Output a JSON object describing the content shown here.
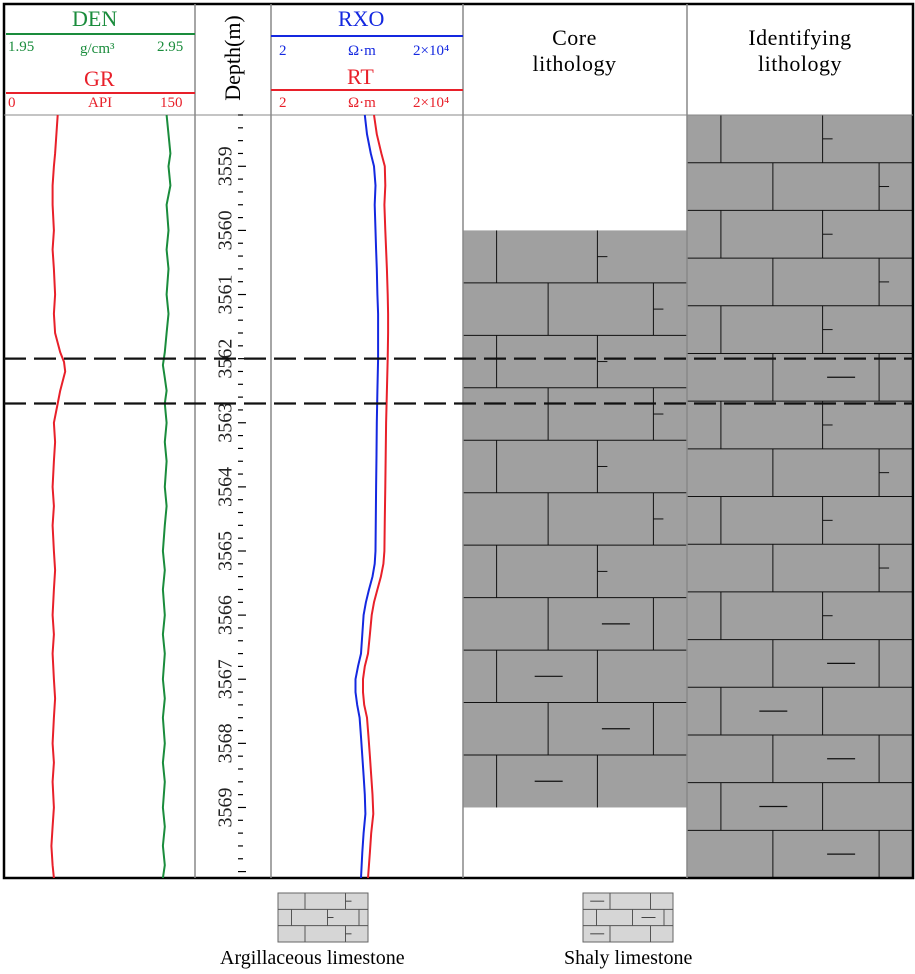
{
  "header": {
    "den": {
      "title": "DEN",
      "min": "1.95",
      "unit": "g/cm³",
      "max": "2.95",
      "color": "#1a8c3c"
    },
    "gr": {
      "title": "GR",
      "min": "0",
      "unit": "API",
      "max": "150",
      "color": "#e8202a"
    },
    "depth": {
      "title": "Depth(m)"
    },
    "rxo": {
      "title": "RXO",
      "min": "2",
      "unit": "Ω·m",
      "max": "2×10⁴",
      "color": "#1428e0"
    },
    "rt": {
      "title": "RT",
      "min": "2",
      "unit": "Ω·m",
      "max": "2×10⁴",
      "color": "#e8202a"
    },
    "core": {
      "title_line1": "Core",
      "title_line2": "lithology"
    },
    "ident": {
      "title_line1": "Identifying",
      "title_line2": "lithology"
    }
  },
  "legend": {
    "argillaceous": {
      "label": "Argillaceous limestone"
    },
    "shaly": {
      "label": "Shaly limestone"
    }
  },
  "chart_data": {
    "type": "line",
    "depth_range": [
      3558.2,
      3570.1
    ],
    "depth_ticks": [
      "3559",
      "3560",
      "3561",
      "3562",
      "3563",
      "3564",
      "3565",
      "3566",
      "3567",
      "3568",
      "3569"
    ],
    "marker_depths": [
      3562.0,
      3562.7
    ],
    "series": [
      {
        "name": "GR",
        "xlim": [
          0,
          150
        ],
        "scale": "linear",
        "color": "#e8202a",
        "points": [
          [
            3558.2,
            41
          ],
          [
            3558.5,
            40
          ],
          [
            3558.8,
            39
          ],
          [
            3559.0,
            38
          ],
          [
            3559.3,
            37
          ],
          [
            3559.6,
            37
          ],
          [
            3560.0,
            38
          ],
          [
            3560.3,
            37
          ],
          [
            3560.6,
            38
          ],
          [
            3561.0,
            39
          ],
          [
            3561.3,
            38
          ],
          [
            3561.6,
            39
          ],
          [
            3561.9,
            43
          ],
          [
            3562.05,
            46
          ],
          [
            3562.2,
            47
          ],
          [
            3562.35,
            45
          ],
          [
            3562.5,
            43
          ],
          [
            3562.7,
            41
          ],
          [
            3563.0,
            38
          ],
          [
            3563.3,
            39
          ],
          [
            3563.6,
            38
          ],
          [
            3564.0,
            37
          ],
          [
            3564.3,
            38
          ],
          [
            3564.6,
            37
          ],
          [
            3565.0,
            38
          ],
          [
            3565.3,
            39
          ],
          [
            3565.6,
            38
          ],
          [
            3566.0,
            37
          ],
          [
            3566.3,
            38
          ],
          [
            3566.6,
            37
          ],
          [
            3567.0,
            38
          ],
          [
            3567.3,
            39
          ],
          [
            3567.6,
            38
          ],
          [
            3568.0,
            37
          ],
          [
            3568.3,
            38
          ],
          [
            3568.6,
            37
          ],
          [
            3569.0,
            38
          ],
          [
            3569.3,
            37
          ],
          [
            3569.6,
            36
          ],
          [
            3569.9,
            37
          ],
          [
            3570.1,
            38
          ]
        ]
      },
      {
        "name": "DEN",
        "xlim": [
          1.95,
          2.95
        ],
        "scale": "linear",
        "color": "#1a8c3c",
        "points": [
          [
            3558.2,
            2.8
          ],
          [
            3558.5,
            2.81
          ],
          [
            3558.8,
            2.82
          ],
          [
            3559.0,
            2.81
          ],
          [
            3559.3,
            2.82
          ],
          [
            3559.6,
            2.8
          ],
          [
            3560.0,
            2.81
          ],
          [
            3560.3,
            2.8
          ],
          [
            3560.6,
            2.81
          ],
          [
            3561.0,
            2.8
          ],
          [
            3561.3,
            2.81
          ],
          [
            3561.6,
            2.8
          ],
          [
            3561.9,
            2.79
          ],
          [
            3562.1,
            2.78
          ],
          [
            3562.3,
            2.79
          ],
          [
            3562.5,
            2.8
          ],
          [
            3562.7,
            2.79
          ],
          [
            3563.0,
            2.8
          ],
          [
            3563.3,
            2.79
          ],
          [
            3563.6,
            2.8
          ],
          [
            3564.0,
            2.79
          ],
          [
            3564.3,
            2.8
          ],
          [
            3564.6,
            2.79
          ],
          [
            3565.0,
            2.78
          ],
          [
            3565.3,
            2.79
          ],
          [
            3565.6,
            2.78
          ],
          [
            3566.0,
            2.79
          ],
          [
            3566.3,
            2.78
          ],
          [
            3566.6,
            2.79
          ],
          [
            3567.0,
            2.78
          ],
          [
            3567.3,
            2.79
          ],
          [
            3567.6,
            2.78
          ],
          [
            3568.0,
            2.79
          ],
          [
            3568.3,
            2.78
          ],
          [
            3568.6,
            2.79
          ],
          [
            3569.0,
            2.78
          ],
          [
            3569.3,
            2.79
          ],
          [
            3569.6,
            2.78
          ],
          [
            3569.9,
            2.79
          ],
          [
            3570.1,
            2.78
          ]
        ]
      },
      {
        "name": "RXO",
        "xlim": [
          2,
          20000
        ],
        "scale": "log",
        "color": "#1428e0",
        "points": [
          [
            3558.2,
            180
          ],
          [
            3558.5,
            200
          ],
          [
            3558.8,
            240
          ],
          [
            3559.0,
            280
          ],
          [
            3559.3,
            300
          ],
          [
            3559.6,
            290
          ],
          [
            3560.0,
            300
          ],
          [
            3560.3,
            310
          ],
          [
            3560.6,
            320
          ],
          [
            3561.0,
            330
          ],
          [
            3561.3,
            340
          ],
          [
            3561.6,
            340
          ],
          [
            3562.0,
            340
          ],
          [
            3562.5,
            330
          ],
          [
            3563.0,
            320
          ],
          [
            3563.5,
            315
          ],
          [
            3564.0,
            310
          ],
          [
            3564.5,
            305
          ],
          [
            3565.0,
            300
          ],
          [
            3565.2,
            290
          ],
          [
            3565.4,
            260
          ],
          [
            3565.6,
            220
          ],
          [
            3565.8,
            190
          ],
          [
            3566.0,
            170
          ],
          [
            3566.3,
            160
          ],
          [
            3566.6,
            150
          ],
          [
            3566.8,
            130
          ],
          [
            3567.0,
            115
          ],
          [
            3567.2,
            115
          ],
          [
            3567.4,
            125
          ],
          [
            3567.6,
            140
          ],
          [
            3567.9,
            150
          ],
          [
            3568.2,
            160
          ],
          [
            3568.5,
            170
          ],
          [
            3568.8,
            180
          ],
          [
            3569.1,
            185
          ],
          [
            3569.4,
            170
          ],
          [
            3569.7,
            160
          ],
          [
            3570.1,
            150
          ]
        ]
      },
      {
        "name": "RT",
        "xlim": [
          2,
          20000
        ],
        "scale": "log",
        "color": "#e8202a",
        "points": [
          [
            3558.2,
            280
          ],
          [
            3558.5,
            320
          ],
          [
            3558.8,
            400
          ],
          [
            3559.0,
            470
          ],
          [
            3559.3,
            480
          ],
          [
            3559.6,
            460
          ],
          [
            3560.0,
            480
          ],
          [
            3560.3,
            500
          ],
          [
            3560.6,
            520
          ],
          [
            3561.0,
            540
          ],
          [
            3561.3,
            550
          ],
          [
            3561.6,
            550
          ],
          [
            3562.0,
            540
          ],
          [
            3562.5,
            520
          ],
          [
            3563.0,
            500
          ],
          [
            3563.5,
            490
          ],
          [
            3564.0,
            480
          ],
          [
            3564.5,
            470
          ],
          [
            3565.0,
            460
          ],
          [
            3565.2,
            440
          ],
          [
            3565.4,
            390
          ],
          [
            3565.6,
            330
          ],
          [
            3565.8,
            280
          ],
          [
            3566.0,
            250
          ],
          [
            3566.3,
            230
          ],
          [
            3566.6,
            210
          ],
          [
            3566.8,
            180
          ],
          [
            3567.0,
            165
          ],
          [
            3567.2,
            165
          ],
          [
            3567.4,
            175
          ],
          [
            3567.6,
            200
          ],
          [
            3567.9,
            215
          ],
          [
            3568.2,
            230
          ],
          [
            3568.5,
            245
          ],
          [
            3568.8,
            260
          ],
          [
            3569.1,
            270
          ],
          [
            3569.4,
            245
          ],
          [
            3569.7,
            230
          ],
          [
            3570.1,
            210
          ]
        ]
      }
    ],
    "core_lithology": {
      "top_depth": 3560.0,
      "bottom_depth": 3569.0,
      "rows": [
        {
          "type": "argillaceous"
        },
        {
          "type": "argillaceous"
        },
        {
          "type": "argillaceous"
        },
        {
          "type": "argillaceous"
        },
        {
          "type": "argillaceous"
        },
        {
          "type": "argillaceous"
        },
        {
          "type": "argillaceous"
        },
        {
          "type": "shaly"
        },
        {
          "type": "shaly"
        },
        {
          "type": "shaly"
        },
        {
          "type": "shaly"
        }
      ]
    },
    "identified_lithology": {
      "top_depth": 3558.2,
      "bottom_depth": 3570.1,
      "rows": [
        {
          "type": "argillaceous"
        },
        {
          "type": "argillaceous"
        },
        {
          "type": "argillaceous"
        },
        {
          "type": "argillaceous"
        },
        {
          "type": "argillaceous"
        },
        {
          "type": "shaly"
        },
        {
          "type": "argillaceous"
        },
        {
          "type": "argillaceous"
        },
        {
          "type": "argillaceous"
        },
        {
          "type": "argillaceous"
        },
        {
          "type": "argillaceous"
        },
        {
          "type": "shaly"
        },
        {
          "type": "shaly"
        },
        {
          "type": "shaly"
        },
        {
          "type": "shaly"
        },
        {
          "type": "shaly"
        }
      ]
    },
    "colors": {
      "rock_fill": "#a0a0a0",
      "legend_fill": "#d6d6d6",
      "frame": "#000000",
      "divider": "#888888"
    }
  }
}
